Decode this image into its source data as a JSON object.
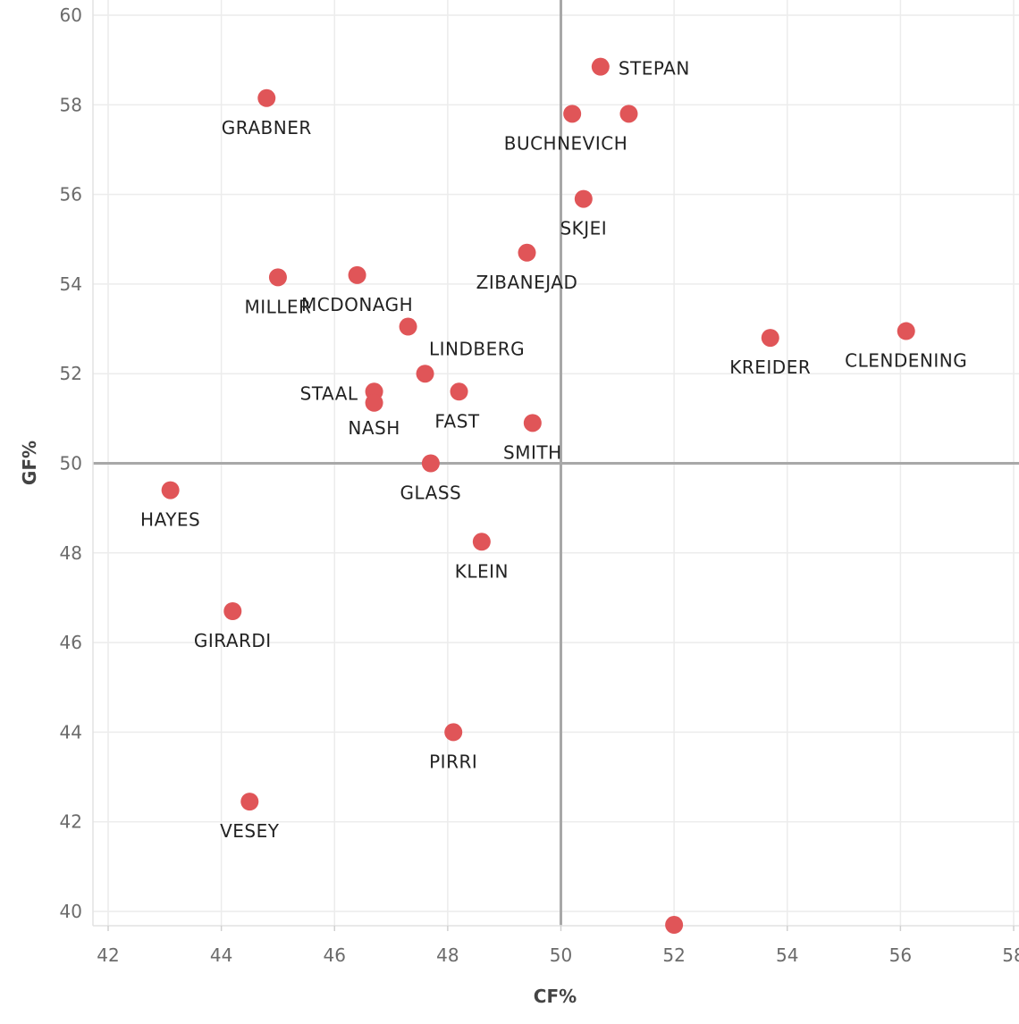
{
  "chart_data": {
    "type": "scatter",
    "xlabel": "CF%",
    "ylabel": "GF%",
    "xlim": [
      41.7,
      58.2
    ],
    "ylim": [
      39.7,
      60.3
    ],
    "xticks": [
      42,
      44,
      46,
      48,
      50,
      52,
      54,
      56,
      58
    ],
    "yticks": [
      40,
      42,
      44,
      46,
      48,
      50,
      52,
      54,
      56,
      58,
      60
    ],
    "grid": true,
    "reference_lines": {
      "x": 50,
      "y": 50
    },
    "marker_color": "#e05558",
    "points": [
      {
        "label": "STEPAN",
        "x": 50.7,
        "y": 58.85
      },
      {
        "label": "",
        "x": 50.2,
        "y": 57.8
      },
      {
        "label": "BUCHNEVICH",
        "x": 51.2,
        "y": 57.8
      },
      {
        "label": "GRABNER",
        "x": 44.8,
        "y": 58.15
      },
      {
        "label": "SKJEI",
        "x": 50.4,
        "y": 55.9
      },
      {
        "label": "ZIBANEJAD",
        "x": 49.4,
        "y": 54.7
      },
      {
        "label": "MILLER",
        "x": 45.0,
        "y": 54.15
      },
      {
        "label": "MCDONAGH",
        "x": 46.4,
        "y": 54.2
      },
      {
        "label": "LINDBERG",
        "x": 47.3,
        "y": 53.05
      },
      {
        "label": "CLENDENING",
        "x": 56.1,
        "y": 52.95
      },
      {
        "label": "KREIDER",
        "x": 53.7,
        "y": 52.8
      },
      {
        "label": "",
        "x": 47.6,
        "y": 52.0
      },
      {
        "label": "FAST",
        "x": 48.2,
        "y": 51.6
      },
      {
        "label": "STAAL",
        "x": 46.7,
        "y": 51.6
      },
      {
        "label": "NASH",
        "x": 46.7,
        "y": 51.35
      },
      {
        "label": "SMITH",
        "x": 49.5,
        "y": 50.9
      },
      {
        "label": "GLASS",
        "x": 47.7,
        "y": 50.0
      },
      {
        "label": "HAYES",
        "x": 43.1,
        "y": 49.4
      },
      {
        "label": "KLEIN",
        "x": 48.6,
        "y": 48.25
      },
      {
        "label": "GIRARDI",
        "x": 44.2,
        "y": 46.7
      },
      {
        "label": "PIRRI",
        "x": 48.1,
        "y": 44.0
      },
      {
        "label": "VESEY",
        "x": 44.5,
        "y": 42.45
      },
      {
        "label": "",
        "x": 52.0,
        "y": 39.7
      }
    ]
  }
}
